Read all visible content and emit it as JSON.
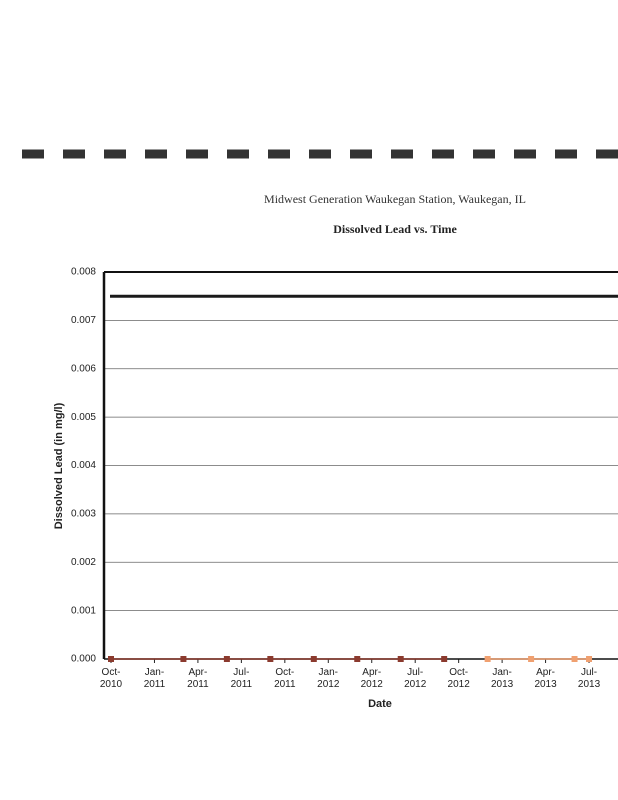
{
  "chart_data": {
    "type": "line",
    "title": "Midwest Generation Waukegan Station, Waukegan, IL",
    "subtitle": "Dissolved Lead vs. Time",
    "x_label": "Date",
    "y_label": "Dissolved Lead (in mg/l)",
    "xlim": [
      "2010-10",
      "2013-09"
    ],
    "xticks": [
      {
        "value": "2010-10",
        "label": "Oct-\n2010"
      },
      {
        "value": "2011-01",
        "label": "Jan-\n2011"
      },
      {
        "value": "2011-04",
        "label": "Apr-\n2011"
      },
      {
        "value": "2011-07",
        "label": "Jul-\n2011"
      },
      {
        "value": "2011-10",
        "label": "Oct-\n2011"
      },
      {
        "value": "2012-01",
        "label": "Jan-\n2012"
      },
      {
        "value": "2012-04",
        "label": "Apr-\n2012"
      },
      {
        "value": "2012-07",
        "label": "Jul-\n2012"
      },
      {
        "value": "2012-10",
        "label": "Oct-\n2012"
      },
      {
        "value": "2013-01",
        "label": "Jan-\n2013"
      },
      {
        "value": "2013-04",
        "label": "Apr-\n2013"
      },
      {
        "value": "2013-07",
        "label": "Jul-\n2013"
      }
    ],
    "ylim": [
      0,
      0.008
    ],
    "yticks": [
      {
        "value": 0,
        "label": "0.000"
      },
      {
        "value": 0.001,
        "label": "0.001"
      },
      {
        "value": 0.002,
        "label": "0.002"
      },
      {
        "value": 0.003,
        "label": "0.003"
      },
      {
        "value": 0.004,
        "label": "0.004"
      },
      {
        "value": 0.005,
        "label": "0.005"
      },
      {
        "value": 0.006,
        "label": "0.006"
      },
      {
        "value": 0.007,
        "label": "0.007"
      },
      {
        "value": 0.008,
        "label": "0.008"
      }
    ],
    "grid": true,
    "hlines": [
      {
        "value": 0.0075,
        "color": "#1a1a1a"
      }
    ],
    "series": [
      {
        "color": "#8b3a2e",
        "x": [
          "2010-10",
          "2011-03",
          "2011-06",
          "2011-09",
          "2011-12",
          "2012-03",
          "2012-06",
          "2012-09"
        ],
        "values": [
          0,
          0,
          0,
          0,
          0,
          0,
          0,
          0
        ]
      },
      {
        "color": "#f0a070",
        "x": [
          "2012-12",
          "2013-03",
          "2013-06",
          "2013-07"
        ],
        "values": [
          0,
          0,
          0,
          0
        ]
      }
    ]
  }
}
